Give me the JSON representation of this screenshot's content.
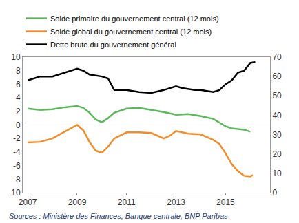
{
  "chart_data": {
    "type": "line",
    "annotations": [
      "Sources : Ministère des Finances, Banque centrale, BNP Paribas"
    ],
    "xlim": [
      2006.8,
      2016.8
    ],
    "xticks": [
      2007,
      2009,
      2011,
      2013,
      2015
    ],
    "ylim": [
      -10,
      10
    ],
    "yticks": [
      -10,
      -8,
      -6,
      -4,
      -2,
      0,
      2,
      4,
      6,
      8,
      10
    ],
    "y2lim": [
      0,
      70
    ],
    "y2ticks": [
      0,
      10,
      20,
      30,
      40,
      50,
      60,
      70
    ],
    "grid": false,
    "legend": "top-left",
    "series": [
      {
        "name": "Solde primaire du gouvernement central (12 mois)",
        "color": "#5cb85c",
        "axis": "y",
        "x": [
          2007.0,
          2007.5,
          2008.0,
          2008.5,
          2009.0,
          2009.25,
          2009.5,
          2009.75,
          2010.0,
          2010.25,
          2010.5,
          2011.0,
          2011.5,
          2012.0,
          2012.5,
          2013.0,
          2013.5,
          2014.0,
          2014.5,
          2015.0,
          2015.25,
          2015.5,
          2015.75,
          2016.0
        ],
        "values": [
          2.4,
          2.2,
          2.3,
          2.6,
          2.8,
          2.5,
          1.8,
          0.8,
          0.4,
          1.0,
          1.8,
          2.4,
          2.5,
          2.2,
          1.9,
          1.5,
          1.6,
          1.3,
          0.9,
          -0.2,
          -0.5,
          -0.6,
          -0.7,
          -1.0
        ]
      },
      {
        "name": "Solde global du gouvernement central (12 mois)",
        "color": "#f28c28",
        "axis": "y",
        "x": [
          2007.0,
          2007.5,
          2008.0,
          2008.5,
          2009.0,
          2009.25,
          2009.5,
          2009.75,
          2010.0,
          2010.25,
          2010.5,
          2011.0,
          2011.5,
          2012.0,
          2012.5,
          2012.75,
          2013.0,
          2013.5,
          2014.0,
          2014.5,
          2014.75,
          2015.0,
          2015.25,
          2015.5,
          2015.75,
          2016.0,
          2016.1
        ],
        "values": [
          -2.6,
          -2.5,
          -2.0,
          -1.0,
          0.0,
          -0.8,
          -2.5,
          -3.8,
          -4.1,
          -3.2,
          -2.0,
          -1.1,
          -1.1,
          -1.2,
          -2.0,
          -1.6,
          -0.9,
          -1.3,
          -1.4,
          -2.2,
          -2.8,
          -4.2,
          -5.8,
          -6.8,
          -7.5,
          -7.6,
          -7.4
        ]
      },
      {
        "name": "Dette brute du gouvernement général",
        "color": "#000000",
        "axis": "y2",
        "x": [
          2007.0,
          2007.5,
          2008.0,
          2008.5,
          2009.0,
          2009.25,
          2009.5,
          2010.0,
          2010.25,
          2010.5,
          2011.0,
          2011.5,
          2012.0,
          2012.5,
          2013.0,
          2013.25,
          2013.75,
          2014.0,
          2014.5,
          2014.75,
          2015.0,
          2015.25,
          2015.5,
          2015.75,
          2016.0,
          2016.2
        ],
        "values": [
          58,
          60,
          60,
          62,
          64,
          63,
          61,
          60,
          59,
          53,
          53,
          52,
          51.5,
          53,
          55,
          54,
          53,
          53,
          52,
          53,
          56,
          58,
          62,
          63,
          67,
          67.5
        ]
      }
    ]
  }
}
